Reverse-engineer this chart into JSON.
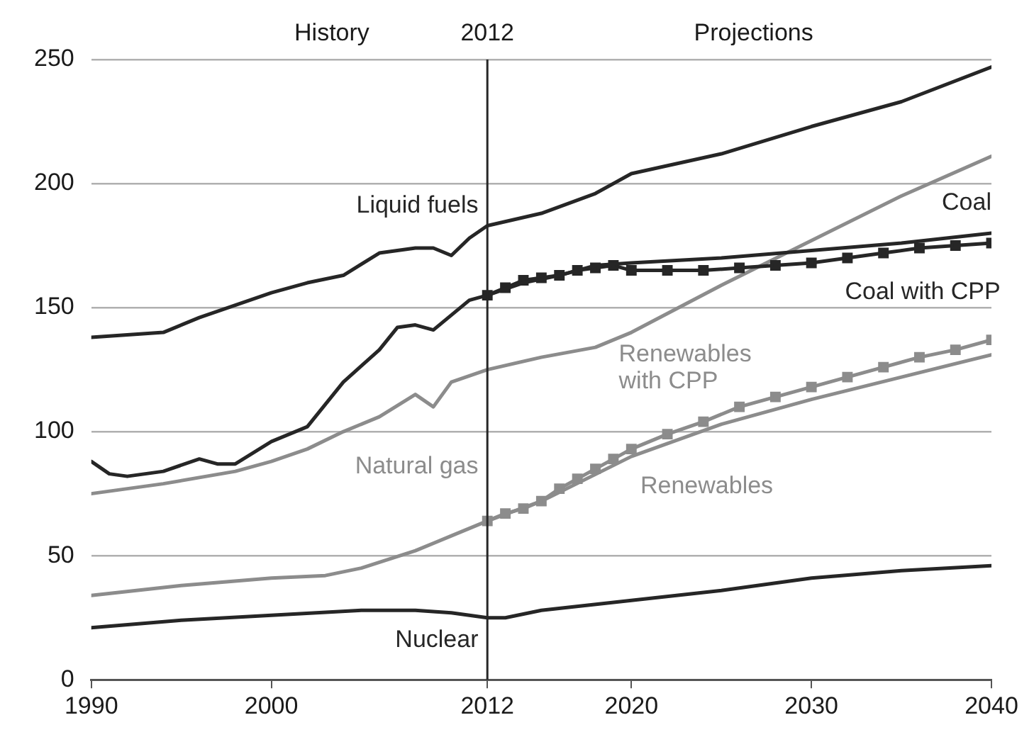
{
  "chart_data": {
    "type": "line",
    "xlim": [
      1990,
      2040
    ],
    "xticks": [
      1990,
      2000,
      2012,
      2020,
      2030,
      2040
    ],
    "ylim": [
      0,
      250
    ],
    "yticks": [
      0,
      50,
      100,
      150,
      200,
      250
    ],
    "grid": "y",
    "legend": false,
    "line_style": "solid",
    "annotations": [
      "History",
      "Projections"
    ],
    "ref_lines": [
      {
        "axis": "x",
        "value": 2012,
        "label": "2012",
        "color": "#262626"
      }
    ],
    "series": [
      {
        "name": "Liquid fuels",
        "color": "#262626",
        "marker": "none",
        "x": [
          1990,
          1992,
          1994,
          1996,
          1998,
          2000,
          2002,
          2004,
          2006,
          2008,
          2009,
          2010,
          2011,
          2012,
          2015,
          2018,
          2020,
          2025,
          2030,
          2035,
          2040
        ],
        "values": [
          138,
          139,
          140,
          146,
          151,
          156,
          160,
          163,
          172,
          174,
          174,
          171,
          178,
          183,
          188,
          196,
          204,
          212,
          223,
          233,
          247
        ]
      },
      {
        "name": "Coal",
        "color": "#262626",
        "marker": "none",
        "x": [
          1990,
          1991,
          1992,
          1994,
          1996,
          1997,
          1998,
          2000,
          2002,
          2004,
          2006,
          2007,
          2008,
          2009,
          2010,
          2011,
          2012,
          2014,
          2016,
          2018,
          2020,
          2025,
          2030,
          2035,
          2040
        ],
        "values": [
          88,
          83,
          82,
          84,
          89,
          87,
          87,
          96,
          102,
          120,
          133,
          142,
          143,
          141,
          147,
          153,
          155,
          160,
          163,
          167,
          168,
          170,
          173,
          176,
          180
        ]
      },
      {
        "name": "Coal with CPP",
        "color": "#262626",
        "marker": "square",
        "x": [
          2012,
          2013,
          2014,
          2015,
          2016,
          2017,
          2018,
          2019,
          2020,
          2022,
          2024,
          2026,
          2028,
          2030,
          2032,
          2034,
          2036,
          2038,
          2040
        ],
        "values": [
          155,
          158,
          161,
          162,
          163,
          165,
          166,
          167,
          165,
          165,
          165,
          166,
          167,
          168,
          170,
          172,
          174,
          175,
          176
        ]
      },
      {
        "name": "Natural gas",
        "color": "#8c8c8c",
        "marker": "none",
        "x": [
          1990,
          1994,
          1998,
          2000,
          2002,
          2004,
          2006,
          2008,
          2009,
          2010,
          2012,
          2015,
          2018,
          2020,
          2025,
          2030,
          2035,
          2040
        ],
        "values": [
          75,
          79,
          84,
          88,
          93,
          100,
          106,
          115,
          110,
          120,
          125,
          130,
          134,
          140,
          159,
          177,
          195,
          211
        ]
      },
      {
        "name": "Renewables with CPP",
        "color": "#8c8c8c",
        "marker": "square",
        "x": [
          2012,
          2013,
          2014,
          2015,
          2016,
          2017,
          2018,
          2019,
          2020,
          2022,
          2024,
          2026,
          2028,
          2030,
          2032,
          2034,
          2036,
          2038,
          2040
        ],
        "values": [
          64,
          67,
          69,
          72,
          77,
          81,
          85,
          89,
          93,
          99,
          104,
          110,
          114,
          118,
          122,
          126,
          130,
          133,
          137
        ]
      },
      {
        "name": "Renewables",
        "color": "#8c8c8c",
        "marker": "none",
        "x": [
          1990,
          1995,
          2000,
          2003,
          2005,
          2008,
          2010,
          2012,
          2015,
          2020,
          2025,
          2030,
          2035,
          2040
        ],
        "values": [
          34,
          38,
          41,
          42,
          45,
          52,
          58,
          64,
          72,
          90,
          103,
          113,
          122,
          131
        ]
      },
      {
        "name": "Nuclear",
        "color": "#262626",
        "marker": "none",
        "x": [
          1990,
          1995,
          2000,
          2005,
          2008,
          2010,
          2012,
          2013,
          2015,
          2020,
          2025,
          2030,
          2035,
          2040
        ],
        "values": [
          21,
          24,
          26,
          28,
          28,
          27,
          25,
          25,
          28,
          32,
          36,
          41,
          44,
          46
        ]
      }
    ]
  }
}
